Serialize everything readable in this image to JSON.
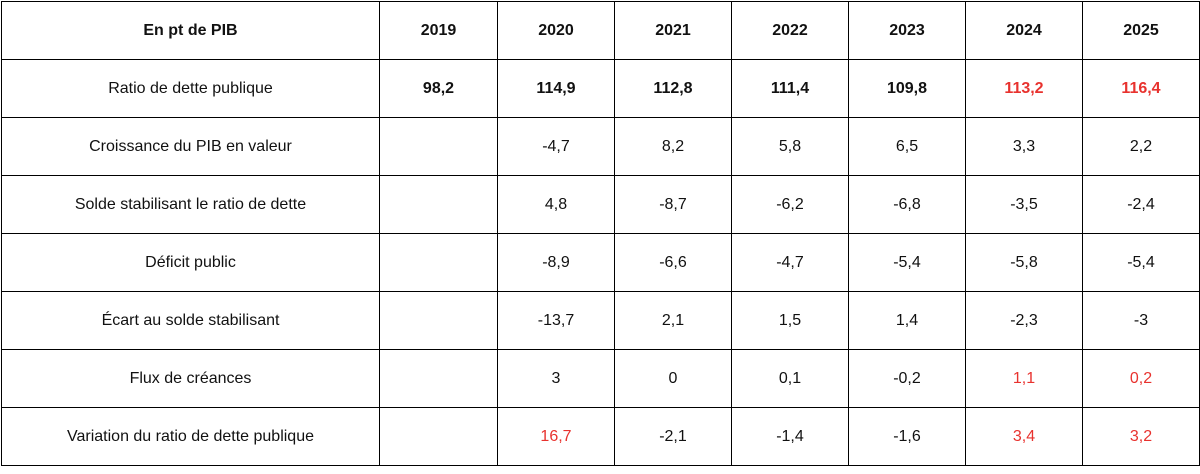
{
  "table": {
    "header": [
      "En pt de PIB",
      "2019",
      "2020",
      "2021",
      "2022",
      "2023",
      "2024",
      "2025"
    ],
    "rows": [
      {
        "label": "Ratio de dette publique",
        "values": [
          "98,2",
          "114,9",
          "112,8",
          "111,4",
          "109,8",
          "113,2",
          "116,4"
        ],
        "bold": true,
        "red": [
          false,
          false,
          false,
          false,
          false,
          true,
          true
        ]
      },
      {
        "label": "Croissance du PIB en valeur",
        "values": [
          "",
          "-4,7",
          "8,2",
          "5,8",
          "6,5",
          "3,3",
          "2,2"
        ],
        "bold": false,
        "red": [
          false,
          false,
          false,
          false,
          false,
          false,
          false
        ]
      },
      {
        "label": "Solde stabilisant le ratio de dette",
        "values": [
          "",
          "4,8",
          "-8,7",
          "-6,2",
          "-6,8",
          "-3,5",
          "-2,4"
        ],
        "bold": false,
        "red": [
          false,
          false,
          false,
          false,
          false,
          false,
          false
        ]
      },
      {
        "label": "Déficit public",
        "values": [
          "",
          "-8,9",
          "-6,6",
          "-4,7",
          "-5,4",
          "-5,8",
          "-5,4"
        ],
        "bold": false,
        "red": [
          false,
          false,
          false,
          false,
          false,
          false,
          false
        ]
      },
      {
        "label": "Écart au solde stabilisant",
        "values": [
          "",
          "-13,7",
          "2,1",
          "1,5",
          "1,4",
          "-2,3",
          "-3"
        ],
        "bold": false,
        "red": [
          false,
          false,
          false,
          false,
          false,
          false,
          false
        ]
      },
      {
        "label": "Flux de créances",
        "values": [
          "",
          "3",
          "0",
          "0,1",
          "-0,2",
          "1,1",
          "0,2"
        ],
        "bold": false,
        "red": [
          false,
          false,
          false,
          false,
          false,
          true,
          true
        ]
      },
      {
        "label": "Variation du ratio de dette publique",
        "values": [
          "",
          "16,7",
          "-2,1",
          "-1,4",
          "-1,6",
          "3,4",
          "3,2"
        ],
        "bold": false,
        "red": [
          false,
          true,
          false,
          false,
          false,
          true,
          true
        ]
      }
    ],
    "colors": {
      "highlight": "#e8322e",
      "border": "#000000",
      "text": "#111111"
    }
  }
}
